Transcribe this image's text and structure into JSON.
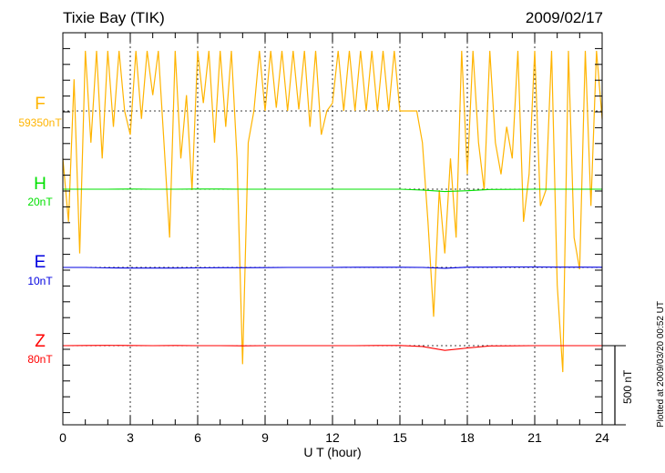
{
  "header": {
    "title": "Tixie Bay (TIK)",
    "date": "2009/02/17"
  },
  "footer": {
    "plotted": "Plotted at 2009/03/20 00:52 UT",
    "scale_bar": "500 nT"
  },
  "chart_data": {
    "type": "line",
    "title": "Tixie Bay (TIK)",
    "xlabel": "U T (hour)",
    "xlim": [
      0,
      24
    ],
    "xticks": [
      "0",
      "3",
      "6",
      "9",
      "12",
      "15",
      "18",
      "21",
      "24"
    ],
    "scale_bar_nT": 500,
    "series": [
      {
        "name": "F",
        "baseline": "59350nT",
        "color": "#ffb400",
        "step_hours": 0.25,
        "values": [
          -300,
          -700,
          200,
          -900,
          380,
          -200,
          380,
          -300,
          380,
          -100,
          380,
          0,
          -150,
          380,
          -50,
          380,
          100,
          380,
          -200,
          -800,
          380,
          -300,
          100,
          -500,
          380,
          50,
          380,
          -200,
          380,
          -100,
          380,
          -300,
          -1600,
          -200,
          0,
          380,
          0,
          380,
          20,
          380,
          0,
          380,
          10,
          380,
          -100,
          380,
          -150,
          0,
          50,
          380,
          0,
          380,
          0,
          380,
          0,
          380,
          0,
          380,
          0,
          380,
          0,
          0,
          0,
          0,
          -200,
          -700,
          -1300,
          -500,
          -900,
          -300,
          -800,
          380,
          -400,
          380,
          -200,
          -500,
          380,
          -200,
          -400,
          -100,
          -300,
          380,
          -700,
          -400,
          380,
          -600,
          -500,
          380,
          -1100,
          -1650,
          380,
          -800,
          -1000,
          380,
          -600,
          380,
          -50
        ]
      },
      {
        "name": "H",
        "baseline": "20nT",
        "color": "#00e000",
        "step_hours": 1,
        "values": [
          0,
          0,
          0,
          1,
          0,
          0,
          1,
          1,
          0,
          0,
          0,
          0,
          0,
          0,
          0,
          0,
          -5,
          -15,
          -10,
          -2,
          -1,
          0,
          0,
          0,
          0
        ]
      },
      {
        "name": "E",
        "baseline": "10nT",
        "color": "#0000e0",
        "step_hours": 1,
        "values": [
          0,
          0,
          -3,
          -4,
          -4,
          -4,
          -3,
          -2,
          -2,
          -1,
          0,
          0,
          0,
          1,
          1,
          1,
          0,
          -5,
          2,
          2,
          3,
          3,
          2,
          2,
          1
        ]
      },
      {
        "name": "Z",
        "baseline": "80nT",
        "color": "#ff0000",
        "step_hours": 1,
        "values": [
          0,
          1,
          2,
          1,
          0,
          1,
          0,
          0,
          -1,
          0,
          0,
          0,
          0,
          0,
          1,
          1,
          -5,
          -30,
          -15,
          -2,
          -1,
          0,
          0,
          0,
          0
        ]
      }
    ]
  }
}
